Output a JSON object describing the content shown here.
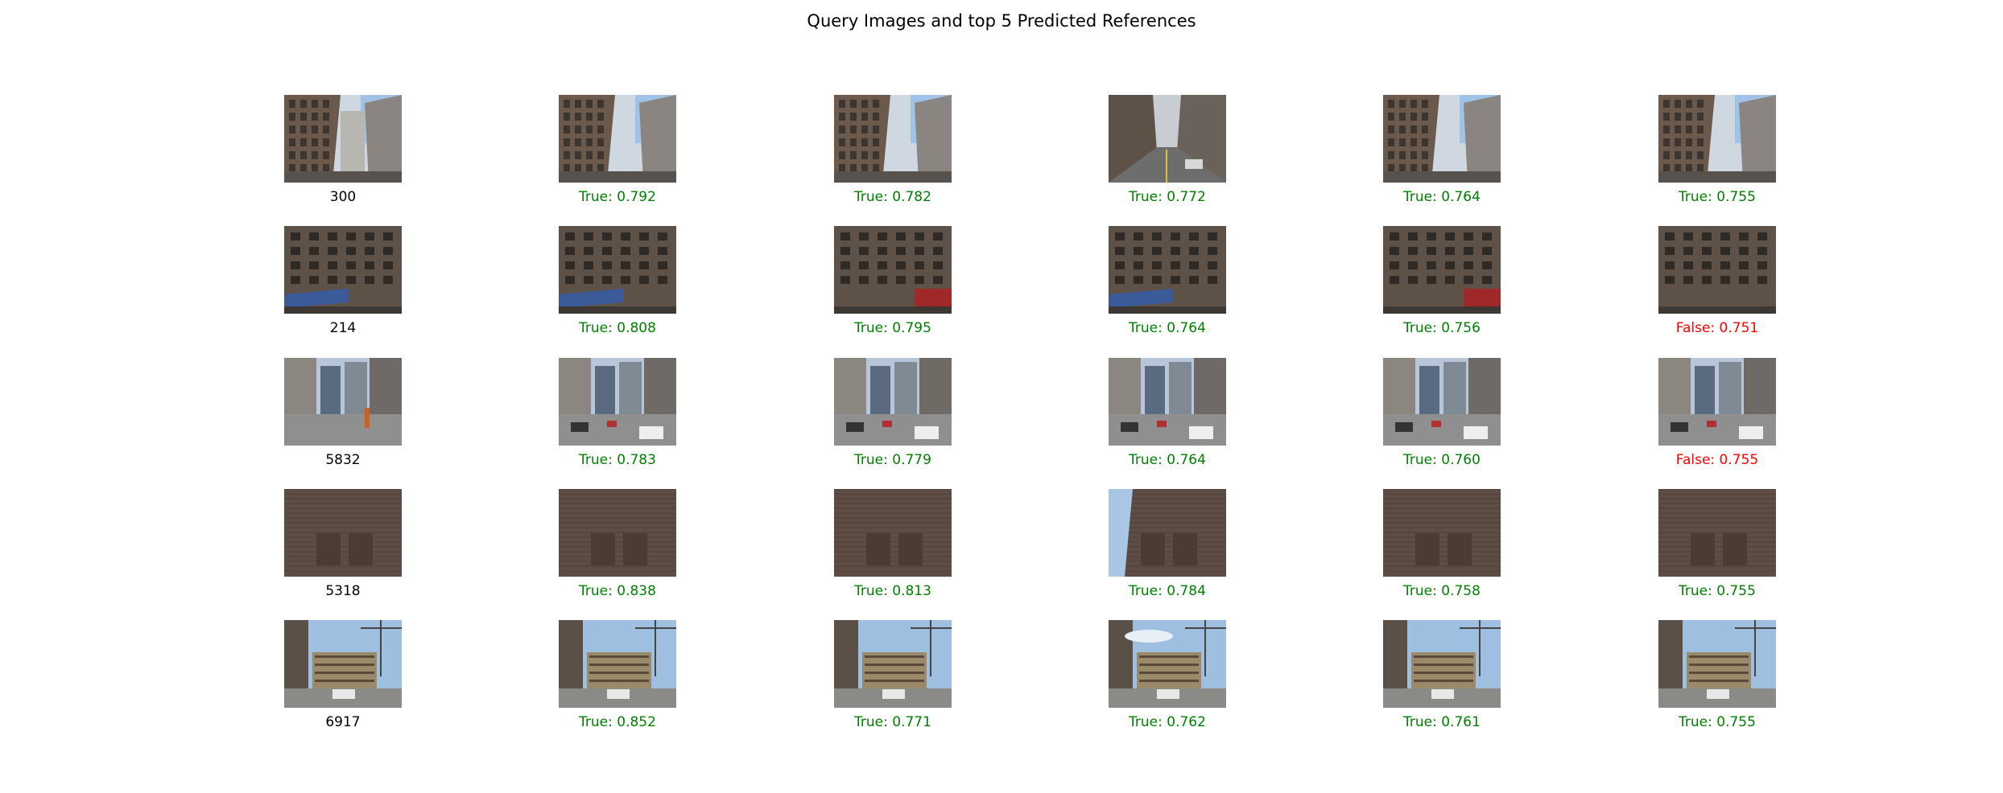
{
  "title": "Query Images and top 5 Predicted References",
  "colors": {
    "true": "#008000",
    "false": "#ff0000",
    "query": "#000000"
  },
  "rows": [
    {
      "query": {
        "label": "300",
        "scene": "tall-street"
      },
      "refs": [
        {
          "label": "True: 0.792",
          "correct": true,
          "scene": "tall-building"
        },
        {
          "label": "True: 0.782",
          "correct": true,
          "scene": "tall-building"
        },
        {
          "label": "True: 0.772",
          "correct": true,
          "scene": "street"
        },
        {
          "label": "True: 0.764",
          "correct": true,
          "scene": "tall-building"
        },
        {
          "label": "True: 0.755",
          "correct": true,
          "scene": "tall-building"
        }
      ]
    },
    {
      "query": {
        "label": "214",
        "scene": "facade-awning"
      },
      "refs": [
        {
          "label": "True: 0.808",
          "correct": true,
          "scene": "facade-awning"
        },
        {
          "label": "True: 0.795",
          "correct": true,
          "scene": "facade-red"
        },
        {
          "label": "True: 0.764",
          "correct": true,
          "scene": "facade-awning"
        },
        {
          "label": "True: 0.756",
          "correct": true,
          "scene": "facade-red"
        },
        {
          "label": "False: 0.751",
          "correct": false,
          "scene": "facade"
        }
      ]
    },
    {
      "query": {
        "label": "5832",
        "scene": "street-wide"
      },
      "refs": [
        {
          "label": "True: 0.783",
          "correct": true,
          "scene": "street-cars"
        },
        {
          "label": "True: 0.779",
          "correct": true,
          "scene": "street-cars"
        },
        {
          "label": "True: 0.764",
          "correct": true,
          "scene": "street-cars"
        },
        {
          "label": "True: 0.760",
          "correct": true,
          "scene": "street-cars"
        },
        {
          "label": "False: 0.755",
          "correct": false,
          "scene": "street-cars"
        }
      ]
    },
    {
      "query": {
        "label": "5318",
        "scene": "brick-wall"
      },
      "refs": [
        {
          "label": "True: 0.838",
          "correct": true,
          "scene": "brick-wall"
        },
        {
          "label": "True: 0.813",
          "correct": true,
          "scene": "brick-wall"
        },
        {
          "label": "True: 0.784",
          "correct": true,
          "scene": "brick-sky"
        },
        {
          "label": "True: 0.758",
          "correct": true,
          "scene": "brick-wall"
        },
        {
          "label": "True: 0.755",
          "correct": true,
          "scene": "brick-wall"
        }
      ]
    },
    {
      "query": {
        "label": "6917",
        "scene": "construction"
      },
      "refs": [
        {
          "label": "True: 0.852",
          "correct": true,
          "scene": "construction"
        },
        {
          "label": "True: 0.771",
          "correct": true,
          "scene": "construction"
        },
        {
          "label": "True: 0.762",
          "correct": true,
          "scene": "construction-sky"
        },
        {
          "label": "True: 0.761",
          "correct": true,
          "scene": "construction"
        },
        {
          "label": "True: 0.755",
          "correct": true,
          "scene": "construction"
        }
      ]
    }
  ]
}
